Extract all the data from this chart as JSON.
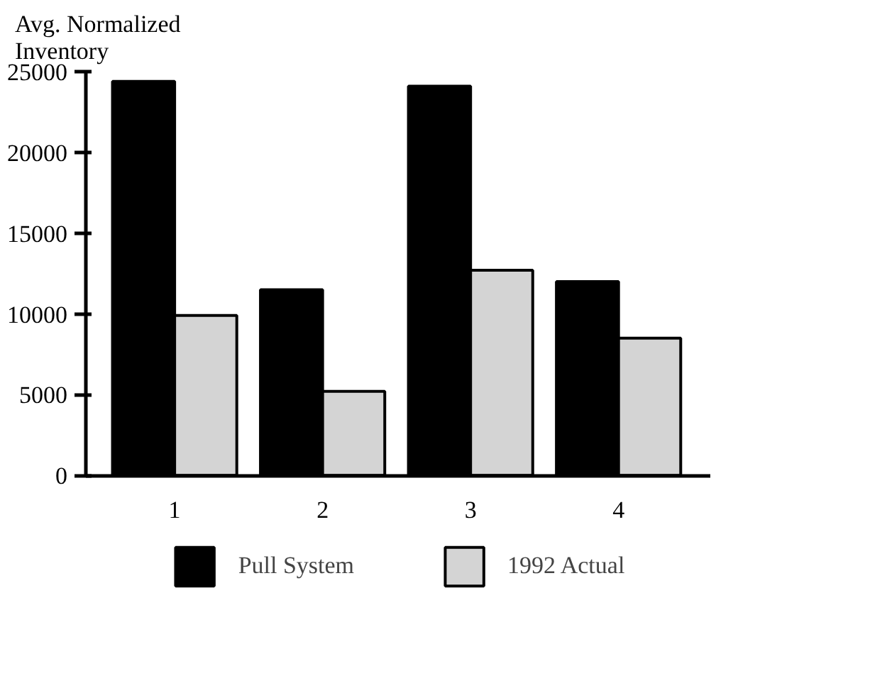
{
  "chart_data": {
    "type": "bar",
    "ylabel": "Avg. Normalized Inventory",
    "categories": [
      "1",
      "2",
      "3",
      "4"
    ],
    "series": [
      {
        "name": "Pull System",
        "color": "#000000",
        "values": [
          24400,
          11500,
          24100,
          12000
        ]
      },
      {
        "name": "1992 Actual",
        "color": "#d4d4d4",
        "values": [
          9900,
          5200,
          12700,
          8500
        ]
      }
    ],
    "ylim": [
      0,
      25000
    ],
    "yticks": [
      0,
      5000,
      10000,
      15000,
      20000,
      25000
    ],
    "grid": false,
    "legend": "bottom"
  }
}
